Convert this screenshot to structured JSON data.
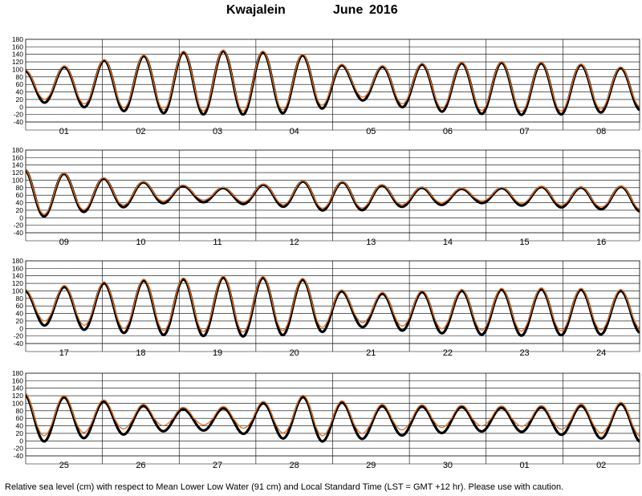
{
  "header": {
    "station": "Kwajalein",
    "month": "June",
    "year": "2016"
  },
  "footnote": "Relative sea level (cm) with respect to Mean Lower Low Water (91 cm) and Local Standard Time (LST = GMT +12 hr). Please use with caution.",
  "colors": {
    "observed": "#000000",
    "predicted": "#e07020",
    "grid": "#000000"
  },
  "chart_data": {
    "type": "line",
    "ylim": [
      -40,
      180
    ],
    "yticks": [
      "-40",
      "-20",
      "0",
      "20",
      "40",
      "60",
      "80",
      "100",
      "120",
      "140",
      "160",
      "180"
    ],
    "grid": true,
    "series": [
      {
        "style": "observed"
      },
      {
        "style": "predicted"
      }
    ],
    "panels": [
      {
        "days": [
          "01",
          "02",
          "03",
          "04",
          "05",
          "06",
          "07",
          "08"
        ],
        "high_tides": [
          100,
          110,
          128,
          140,
          150,
          152,
          148,
          138,
          105,
          112,
          118,
          120,
          121,
          118,
          112,
          102
        ],
        "low_tides": [
          20,
          8,
          -5,
          -12,
          -16,
          -18,
          -15,
          -10,
          25,
          5,
          -8,
          -15,
          -18,
          -17,
          -12,
          -6
        ],
        "observed_offset": -3,
        "predicted_low_offset": 6
      },
      {
        "days": [
          "09",
          "10",
          "11",
          "12",
          "13",
          "14",
          "15",
          "16"
        ],
        "high_tides": [
          130,
          118,
          105,
          95,
          85,
          80,
          92,
          100,
          95,
          85,
          80,
          78,
          82,
          85,
          80,
          88
        ],
        "low_tides": [
          0,
          12,
          25,
          38,
          45,
          40,
          35,
          22,
          20,
          30,
          35,
          42,
          35,
          30,
          25,
          18
        ],
        "observed_offset": -2,
        "predicted_low_offset": 4
      },
      {
        "days": [
          "17",
          "18",
          "19",
          "20",
          "21",
          "22",
          "23",
          "24"
        ],
        "high_tides": [
          105,
          115,
          125,
          132,
          135,
          140,
          138,
          132,
          92,
          98,
          102,
          105,
          108,
          108,
          106,
          102
        ],
        "low_tides": [
          18,
          5,
          -5,
          -12,
          -15,
          -18,
          -15,
          -10,
          10,
          0,
          -8,
          -12,
          -15,
          -14,
          -12,
          -8
        ],
        "observed_offset": -4,
        "predicted_low_offset": 8
      },
      {
        "days": [
          "25",
          "26",
          "27",
          "28",
          "29",
          "30",
          "01",
          "02"
        ],
        "high_tides": [
          128,
          120,
          108,
          96,
          88,
          92,
          108,
          125,
          100,
          96,
          96,
          94,
          92,
          95,
          100,
          105
        ],
        "low_tides": [
          0,
          8,
          18,
          28,
          35,
          28,
          15,
          2,
          8,
          18,
          25,
          30,
          30,
          22,
          12,
          2
        ],
        "observed_offset": -5,
        "predicted_low_offset": 10
      }
    ]
  }
}
